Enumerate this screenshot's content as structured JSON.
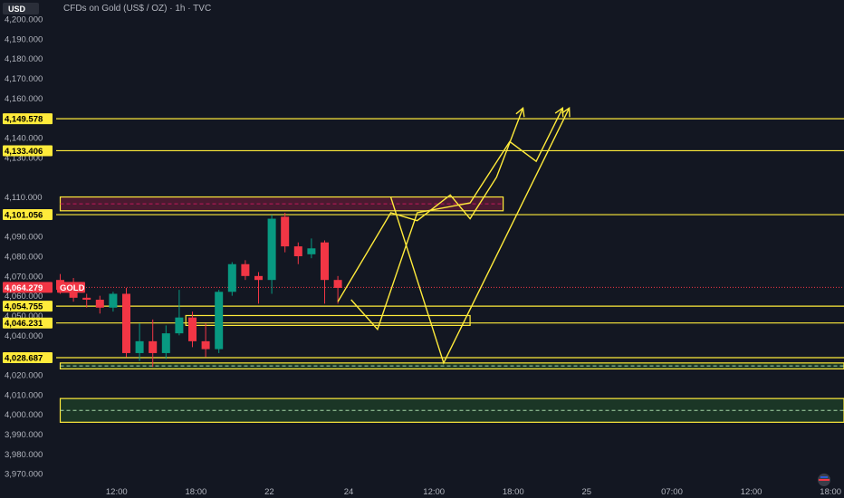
{
  "header": {
    "currency": "USD",
    "title": "CFDs on Gold (US$ / OZ) · 1h · TVC"
  },
  "chart_data": {
    "type": "candlestick",
    "title": "CFDs on Gold (US$ / OZ) · 1h · TVC",
    "ylim": [
      3965,
      4206
    ],
    "y_ticks": [
      {
        "value": 4200,
        "label": "4,200.000"
      },
      {
        "value": 4190,
        "label": "4,190.000"
      },
      {
        "value": 4180,
        "label": "4,180.000"
      },
      {
        "value": 4170,
        "label": "4,170.000"
      },
      {
        "value": 4160,
        "label": "4,160.000"
      },
      {
        "value": 4140,
        "label": "4,140.000"
      },
      {
        "value": 4130,
        "label": "4,130.000"
      },
      {
        "value": 4110,
        "label": "4,110.000"
      },
      {
        "value": 4090,
        "label": "4,090.000"
      },
      {
        "value": 4080,
        "label": "4,080.000"
      },
      {
        "value": 4070,
        "label": "4,070.000"
      },
      {
        "value": 4060,
        "label": "4,060.000"
      },
      {
        "value": 4050,
        "label": "4,050.000"
      },
      {
        "value": 4040,
        "label": "4,040.000"
      },
      {
        "value": 4020,
        "label": "4,020.000"
      },
      {
        "value": 4010,
        "label": "4,010.000"
      },
      {
        "value": 4000,
        "label": "4,000.000"
      },
      {
        "value": 3990,
        "label": "3,990.000"
      },
      {
        "value": 3980,
        "label": "3,980.000"
      },
      {
        "value": 3970,
        "label": "3,970.000"
      }
    ],
    "x_ticks": [
      {
        "label": "12:00",
        "i": 4
      },
      {
        "label": "18:00",
        "i": 10
      },
      {
        "label": "22",
        "i": 16
      },
      {
        "label": "24",
        "i": 22
      },
      {
        "label": "12:00",
        "i": 28
      },
      {
        "label": "18:00",
        "i": 34
      },
      {
        "label": "25",
        "i": 40
      },
      {
        "label": "07:00",
        "i": 46
      },
      {
        "label": "12:00",
        "i": 52
      },
      {
        "label": "18:00",
        "i": 58
      }
    ],
    "candles": [
      {
        "o": 4068,
        "h": 4071,
        "l": 4061,
        "c": 4063
      },
      {
        "o": 4063,
        "h": 4069,
        "l": 4057,
        "c": 4059
      },
      {
        "o": 4059,
        "h": 4061,
        "l": 4054,
        "c": 4058
      },
      {
        "o": 4058,
        "h": 4060,
        "l": 4051,
        "c": 4054
      },
      {
        "o": 4054,
        "h": 4062,
        "l": 4052,
        "c": 4061
      },
      {
        "o": 4061,
        "h": 4064,
        "l": 4029,
        "c": 4031
      },
      {
        "o": 4031,
        "h": 4046,
        "l": 4027,
        "c": 4037
      },
      {
        "o": 4037,
        "h": 4048,
        "l": 4024,
        "c": 4031
      },
      {
        "o": 4031,
        "h": 4045,
        "l": 4028,
        "c": 4041
      },
      {
        "o": 4041,
        "h": 4063,
        "l": 4040,
        "c": 4049
      },
      {
        "o": 4049,
        "h": 4052,
        "l": 4034,
        "c": 4037
      },
      {
        "o": 4037,
        "h": 4046,
        "l": 4029,
        "c": 4033
      },
      {
        "o": 4033,
        "h": 4063,
        "l": 4031,
        "c": 4062
      },
      {
        "o": 4062,
        "h": 4077,
        "l": 4060,
        "c": 4076
      },
      {
        "o": 4076,
        "h": 4078,
        "l": 4068,
        "c": 4070
      },
      {
        "o": 4070,
        "h": 4072,
        "l": 4056,
        "c": 4068
      },
      {
        "o": 4068,
        "h": 4101,
        "l": 4061,
        "c": 4099
      },
      {
        "o": 4100,
        "h": 4102,
        "l": 4082,
        "c": 4085
      },
      {
        "o": 4085,
        "h": 4087,
        "l": 4076,
        "c": 4080
      },
      {
        "o": 4081,
        "h": 4089,
        "l": 4079,
        "c": 4084
      },
      {
        "o": 4087,
        "h": 4088,
        "l": 4056,
        "c": 4068
      },
      {
        "o": 4068,
        "h": 4070,
        "l": 4056,
        "c": 4064
      }
    ],
    "price_tags": [
      {
        "value": 4149.578,
        "label": "4,149.578",
        "line": true
      },
      {
        "value": 4133.406,
        "label": "4,133.406",
        "line": true
      },
      {
        "value": 4101.056,
        "label": "4,101.056",
        "line": true
      },
      {
        "value": 4054.755,
        "label": "4,054.755",
        "line": true
      },
      {
        "value": 4046.231,
        "label": "4,046.231",
        "line": true
      },
      {
        "value": 4028.687,
        "label": "4,028.687",
        "line": true
      }
    ],
    "current_price": {
      "value": 4064.279,
      "label": "4,064.279",
      "symbol": "GOLD"
    },
    "zones": [
      {
        "from": 4103,
        "to": 4110,
        "kind": "supply",
        "x_from": 0,
        "x_to": 33.5
      },
      {
        "from": 4045,
        "to": 4050,
        "kind": "box",
        "x_from": 9.5,
        "x_to": 31
      },
      {
        "from": 4023,
        "to": 4026,
        "kind": "demand",
        "x_from": 0,
        "x_to": 66
      },
      {
        "from": 3996,
        "to": 4008,
        "kind": "demand",
        "x_from": 0,
        "x_to": 66
      }
    ],
    "paths": [
      {
        "points": [
          [
            21,
            4057
          ],
          [
            25,
            4102
          ],
          [
            27,
            4098
          ],
          [
            29.5,
            4111
          ],
          [
            31,
            4099
          ],
          [
            33,
            4120
          ],
          [
            35,
            4155
          ]
        ],
        "arrow": true
      },
      {
        "points": [
          [
            22,
            4058
          ],
          [
            24,
            4043
          ],
          [
            27,
            4102
          ],
          [
            31,
            4107
          ],
          [
            34,
            4138
          ],
          [
            36,
            4128
          ],
          [
            38,
            4155
          ]
        ],
        "arrow": true
      },
      {
        "points": [
          [
            25,
            4110
          ],
          [
            29,
            4026
          ],
          [
            38.5,
            4155
          ]
        ],
        "arrow": true
      }
    ]
  }
}
